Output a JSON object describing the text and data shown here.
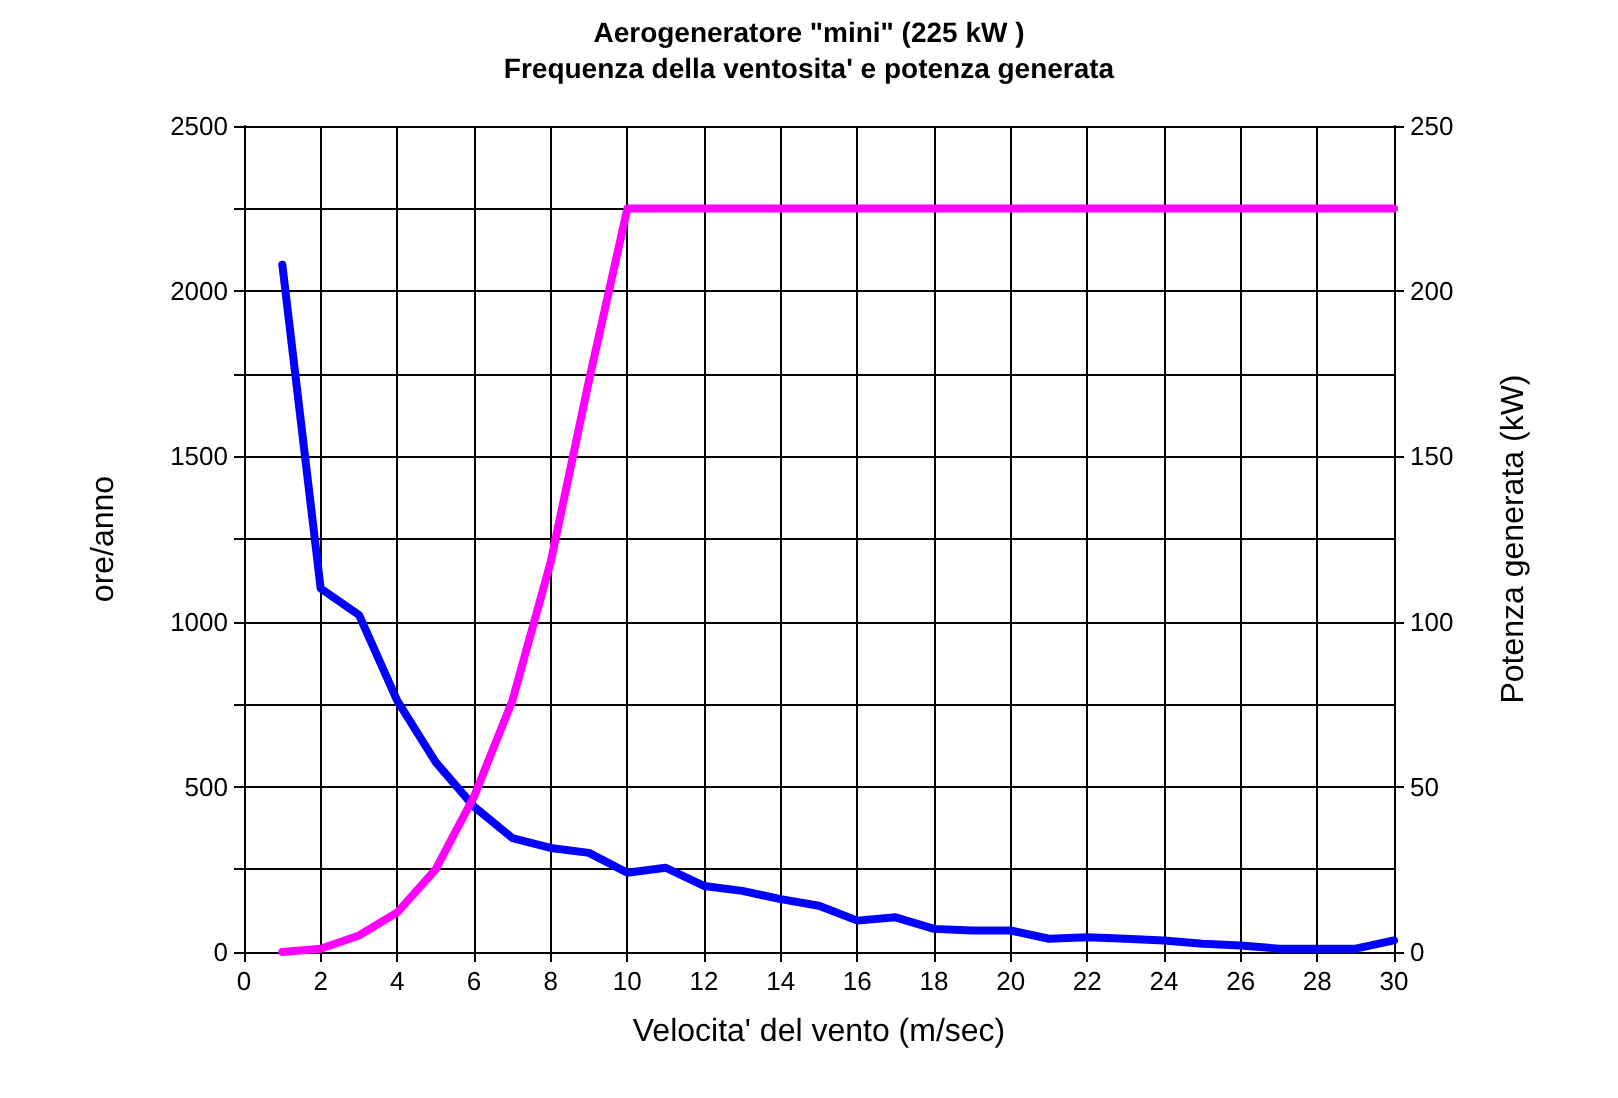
{
  "chart_data": {
    "type": "line",
    "title": "Aerogeneratore \"mini\" (225 kW )",
    "subtitle": "Frequenza della ventosita' e potenza generata",
    "xlabel": "Velocita' del vento (m/sec)",
    "ylabel": "ore/anno",
    "y2label": "Potenza generata (kW)",
    "x": [
      1,
      2,
      3,
      4,
      5,
      6,
      7,
      8,
      9,
      10,
      11,
      12,
      13,
      14,
      15,
      16,
      17,
      18,
      19,
      20,
      21,
      22,
      23,
      24,
      25,
      26,
      27,
      28,
      29,
      30
    ],
    "series": [
      {
        "color": "#0000ff",
        "values": [
          2080,
          1100,
          1020,
          760,
          575,
          440,
          345,
          315,
          300,
          240,
          255,
          200,
          185,
          160,
          140,
          95,
          105,
          70,
          65,
          65,
          40,
          45,
          40,
          35,
          25,
          20,
          10,
          10,
          10,
          35
        ]
      },
      {
        "color": "#ff00ff",
        "axis": "y2",
        "values": [
          0,
          1,
          5,
          12,
          25,
          47,
          76,
          118,
          173,
          225,
          225,
          225,
          225,
          225,
          225,
          225,
          225,
          225,
          225,
          225,
          225,
          225,
          225,
          225,
          225,
          225,
          225,
          225,
          225,
          225
        ]
      }
    ],
    "xlim": [
      0,
      30
    ],
    "xticks": [
      0,
      2,
      4,
      6,
      8,
      10,
      12,
      14,
      16,
      18,
      20,
      22,
      24,
      26,
      28,
      30
    ],
    "ylim": [
      0,
      2500
    ],
    "yticks": [
      0,
      {
        "value": 250,
        "label": null
      },
      500,
      {
        "value": 750,
        "label": null
      },
      1000,
      {
        "value": 1250,
        "label": null
      },
      1500,
      {
        "value": 1750,
        "label": null
      },
      2000,
      {
        "value": 2250,
        "label": null
      },
      2500
    ],
    "y2lim": [
      0,
      250
    ],
    "y2ticks": [
      0,
      50,
      100,
      150,
      200,
      250
    ],
    "grid": true,
    "marker": "none",
    "line_style": "solid"
  }
}
